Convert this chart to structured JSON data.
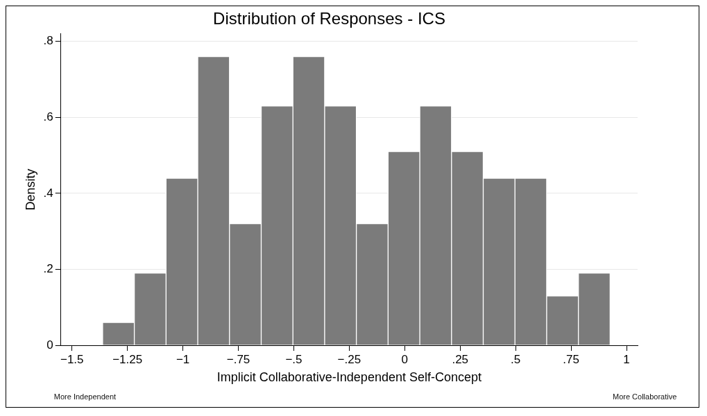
{
  "chart_data": {
    "type": "histogram",
    "title": "Distribution of Responses - ICS",
    "xlabel": "Implicit Collaborative-Independent Self-Concept",
    "ylabel": "Density",
    "bins": [
      -1.362,
      -1.219,
      -1.076,
      -0.933,
      -0.79,
      -0.647,
      -0.504,
      -0.361,
      -0.218,
      -0.075,
      0.068,
      0.211,
      0.354,
      0.497,
      0.64,
      0.783,
      0.926
    ],
    "values": [
      0.06,
      0.19,
      0.44,
      0.76,
      0.32,
      0.63,
      0.76,
      0.63,
      0.32,
      0.51,
      0.63,
      0.51,
      0.44,
      0.44,
      0.13,
      0.19
    ],
    "color": "#7b7b7b",
    "xlim": [
      -1.55,
      1.05
    ],
    "xticks": [
      {
        "value": -1.5,
        "label": "−1.5"
      },
      {
        "value": -1.25,
        "label": "−1.25"
      },
      {
        "value": -1,
        "label": "−1"
      },
      {
        "value": -0.75,
        "label": "−.75"
      },
      {
        "value": -0.5,
        "label": "−.5"
      },
      {
        "value": -0.25,
        "label": "−.25"
      },
      0,
      {
        "value": 0.25,
        "label": ".25"
      },
      {
        "value": 0.5,
        "label": ".5"
      },
      {
        "value": 0.75,
        "label": ".75"
      },
      1
    ],
    "ylim": [
      0,
      0.82
    ],
    "yticks": [
      0,
      {
        "value": 0.2,
        "label": ".2"
      },
      {
        "value": 0.4,
        "label": ".4"
      },
      {
        "value": 0.6,
        "label": ".6"
      },
      {
        "value": 0.8,
        "label": ".8"
      }
    ],
    "grid": "y",
    "annotations": [
      "More Independent",
      "More Collaborative"
    ]
  }
}
